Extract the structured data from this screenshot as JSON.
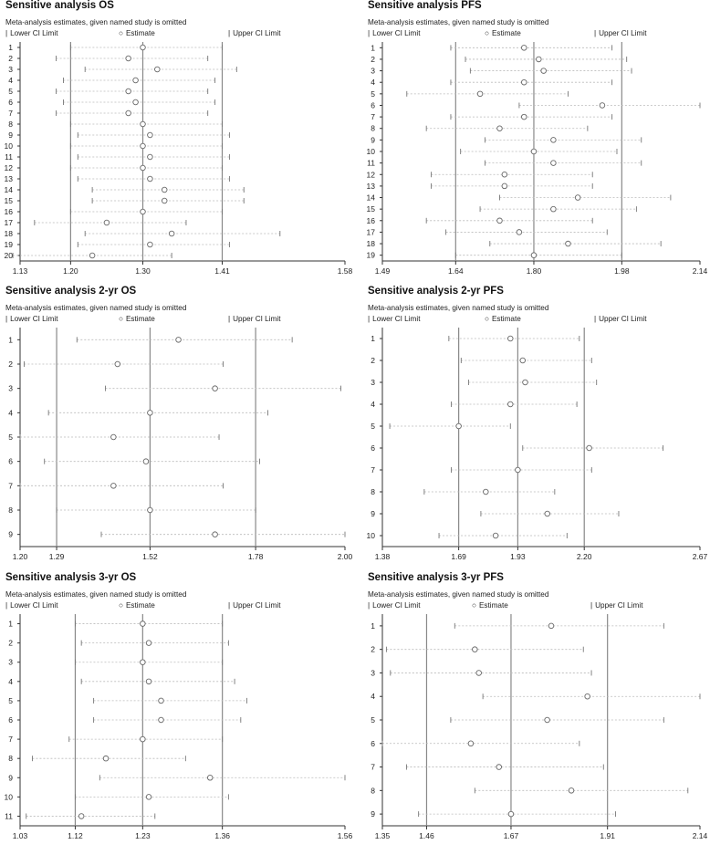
{
  "subtitle": "Meta-analysis estimates, given named study is omitted",
  "legend": {
    "lower": "Lower CI Limit",
    "estimate": "Estimate",
    "upper": "Upper CI Limit"
  },
  "colors": {
    "ci_line": "#bbbbbb",
    "ref_line": "#888888",
    "marker": "#666666"
  },
  "chart_data": [
    {
      "id": "os",
      "type": "scatter",
      "title": "Sensitive analysis OS",
      "ticks": [
        "1.13",
        "1.20",
        "1.30",
        "1.41",
        "1.58"
      ],
      "tick_values": [
        1.13,
        1.2,
        1.3,
        1.41,
        1.58
      ],
      "xlim": [
        1.13,
        1.58
      ],
      "reference": {
        "lower": 1.2,
        "estimate": 1.3,
        "upper": 1.41
      },
      "studies": [
        "1",
        "2",
        "3",
        "4",
        "5",
        "6",
        "7",
        "8",
        "9",
        "10",
        "11",
        "12",
        "13",
        "14",
        "15",
        "16",
        "17",
        "18",
        "19",
        "20"
      ],
      "estimate": [
        1.3,
        1.28,
        1.32,
        1.29,
        1.28,
        1.29,
        1.28,
        1.3,
        1.31,
        1.3,
        1.31,
        1.3,
        1.31,
        1.33,
        1.33,
        1.3,
        1.25,
        1.34,
        1.31,
        1.23
      ],
      "lower": [
        1.2,
        1.18,
        1.22,
        1.19,
        1.18,
        1.19,
        1.18,
        1.2,
        1.21,
        1.2,
        1.21,
        1.2,
        1.21,
        1.23,
        1.23,
        1.2,
        1.15,
        1.22,
        1.21,
        1.12
      ],
      "upper": [
        1.41,
        1.39,
        1.43,
        1.4,
        1.39,
        1.4,
        1.39,
        1.41,
        1.42,
        1.41,
        1.42,
        1.41,
        1.42,
        1.44,
        1.44,
        1.41,
        1.36,
        1.49,
        1.42,
        1.34
      ]
    },
    {
      "id": "pfs",
      "type": "scatter",
      "title": "Sensitive analysis PFS",
      "ticks": [
        "1.49",
        "1.64",
        "1.80",
        "1.98",
        "2.14"
      ],
      "tick_values": [
        1.49,
        1.64,
        1.8,
        1.98,
        2.14
      ],
      "xlim": [
        1.49,
        2.14
      ],
      "reference": {
        "lower": 1.64,
        "estimate": 1.8,
        "upper": 1.98
      },
      "studies": [
        "1",
        "2",
        "3",
        "4",
        "5",
        "6",
        "7",
        "8",
        "9",
        "10",
        "11",
        "12",
        "13",
        "14",
        "15",
        "16",
        "17",
        "18",
        "19"
      ],
      "estimate": [
        1.78,
        1.81,
        1.82,
        1.78,
        1.69,
        1.94,
        1.78,
        1.73,
        1.84,
        1.8,
        1.84,
        1.74,
        1.74,
        1.89,
        1.84,
        1.73,
        1.77,
        1.87,
        1.8
      ],
      "lower": [
        1.63,
        1.66,
        1.67,
        1.63,
        1.54,
        1.77,
        1.63,
        1.58,
        1.7,
        1.65,
        1.7,
        1.59,
        1.59,
        1.73,
        1.69,
        1.58,
        1.62,
        1.71,
        1.64
      ],
      "upper": [
        1.96,
        1.99,
        2.0,
        1.96,
        1.87,
        2.14,
        1.96,
        1.91,
        2.02,
        1.97,
        2.02,
        1.92,
        1.92,
        2.08,
        2.01,
        1.92,
        1.95,
        2.06,
        1.98
      ]
    },
    {
      "id": "os2",
      "type": "scatter",
      "title": "Sensitive analysis 2-yr OS",
      "ticks": [
        "1.20",
        "1.29",
        "1.52",
        "1.78",
        "2.00"
      ],
      "tick_values": [
        1.2,
        1.29,
        1.52,
        1.78,
        2.0
      ],
      "xlim": [
        1.2,
        2.0
      ],
      "reference": {
        "lower": 1.29,
        "estimate": 1.52,
        "upper": 1.78
      },
      "studies": [
        "1",
        "2",
        "3",
        "4",
        "5",
        "6",
        "7",
        "8",
        "9"
      ],
      "estimate": [
        1.59,
        1.44,
        1.68,
        1.52,
        1.43,
        1.51,
        1.43,
        1.52,
        1.68
      ],
      "lower": [
        1.34,
        1.21,
        1.41,
        1.27,
        1.2,
        1.26,
        1.2,
        1.29,
        1.4
      ],
      "upper": [
        1.87,
        1.7,
        1.99,
        1.81,
        1.69,
        1.79,
        1.7,
        1.78,
        2.0
      ]
    },
    {
      "id": "pfs2",
      "type": "scatter",
      "title": "Sensitive analysis 2-yr PFS",
      "ticks": [
        "1.38",
        "1.69",
        "1.93",
        "2.20",
        "2.67"
      ],
      "tick_values": [
        1.38,
        1.69,
        1.93,
        2.2,
        2.67
      ],
      "xlim": [
        1.38,
        2.67
      ],
      "reference": {
        "lower": 1.69,
        "estimate": 1.93,
        "upper": 2.2
      },
      "studies": [
        "1",
        "2",
        "3",
        "4",
        "5",
        "6",
        "7",
        "8",
        "9",
        "10"
      ],
      "estimate": [
        1.9,
        1.95,
        1.96,
        1.9,
        1.69,
        2.22,
        1.93,
        1.8,
        2.05,
        1.84
      ],
      "lower": [
        1.65,
        1.7,
        1.73,
        1.66,
        1.41,
        1.95,
        1.66,
        1.55,
        1.78,
        1.61
      ],
      "upper": [
        2.18,
        2.23,
        2.25,
        2.17,
        1.9,
        2.52,
        2.23,
        2.08,
        2.34,
        2.13
      ]
    },
    {
      "id": "os3",
      "type": "scatter",
      "title": "Sensitive analysis 3-yr OS",
      "ticks": [
        "1.03",
        "1.12",
        "1.23",
        "1.36",
        "1.56"
      ],
      "tick_values": [
        1.03,
        1.12,
        1.23,
        1.36,
        1.56
      ],
      "xlim": [
        1.03,
        1.56
      ],
      "reference": {
        "lower": 1.12,
        "estimate": 1.23,
        "upper": 1.36
      },
      "studies": [
        "1",
        "2",
        "3",
        "4",
        "5",
        "6",
        "7",
        "8",
        "9",
        "10",
        "11"
      ],
      "estimate": [
        1.23,
        1.24,
        1.23,
        1.24,
        1.26,
        1.26,
        1.23,
        1.17,
        1.34,
        1.24,
        1.13
      ],
      "lower": [
        1.12,
        1.13,
        1.12,
        1.13,
        1.15,
        1.15,
        1.11,
        1.05,
        1.16,
        1.12,
        1.04
      ],
      "upper": [
        1.36,
        1.37,
        1.36,
        1.38,
        1.4,
        1.39,
        1.36,
        1.3,
        1.56,
        1.37,
        1.25
      ]
    },
    {
      "id": "pfs3",
      "type": "scatter",
      "title": "Sensitive analysis 3-yr PFS",
      "ticks": [
        "1.35",
        "1.46",
        "1.67",
        "1.91",
        "2.14"
      ],
      "tick_values": [
        1.35,
        1.46,
        1.67,
        1.91,
        2.14
      ],
      "xlim": [
        1.35,
        2.14
      ],
      "reference": {
        "lower": 1.46,
        "estimate": 1.67,
        "upper": 1.91
      },
      "studies": [
        "1",
        "2",
        "3",
        "4",
        "5",
        "6",
        "7",
        "8",
        "9"
      ],
      "estimate": [
        1.77,
        1.58,
        1.59,
        1.86,
        1.76,
        1.57,
        1.64,
        1.82,
        1.67
      ],
      "lower": [
        1.53,
        1.36,
        1.37,
        1.6,
        1.52,
        1.35,
        1.41,
        1.58,
        1.44
      ],
      "upper": [
        2.05,
        1.85,
        1.87,
        2.14,
        2.05,
        1.84,
        1.9,
        2.11,
        1.93
      ]
    }
  ]
}
